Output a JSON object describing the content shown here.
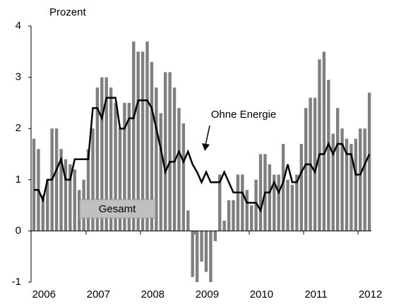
{
  "chart_data": {
    "type": "bar",
    "y_label": "Prozent",
    "categories": [
      null,
      null,
      null,
      "2006",
      null,
      null,
      null,
      null,
      null,
      null,
      null,
      null,
      null,
      null,
      null,
      "2007",
      null,
      null,
      null,
      null,
      null,
      null,
      null,
      null,
      null,
      null,
      null,
      "2008",
      null,
      null,
      null,
      null,
      null,
      null,
      null,
      null,
      null,
      null,
      null,
      "2009",
      null,
      null,
      null,
      null,
      null,
      null,
      null,
      null,
      null,
      null,
      null,
      "2010",
      null,
      null,
      null,
      null,
      null,
      null,
      null,
      null,
      null,
      null,
      null,
      "2011",
      null,
      null,
      null,
      null,
      null,
      null,
      null,
      null,
      null,
      null,
      null,
      "2012"
    ],
    "series": [
      {
        "name": "Gesamt",
        "type": "bar",
        "color": "#7f7f7f",
        "values": [
          1.8,
          1.6,
          0.7,
          1.0,
          2.0,
          2.0,
          1.6,
          1.4,
          1.3,
          1.2,
          0.8,
          1.0,
          1.6,
          2.0,
          2.8,
          3.0,
          3.0,
          2.8,
          2.5,
          2.0,
          2.5,
          2.5,
          3.7,
          3.5,
          3.5,
          3.7,
          3.3,
          2.8,
          2.3,
          3.1,
          3.1,
          2.8,
          2.4,
          2.1,
          0.4,
          -0.9,
          -1.0,
          -0.6,
          -0.8,
          -1.0,
          -0.2,
          1.1,
          0.2,
          0.6,
          0.6,
          1.1,
          1.1,
          0.8,
          0.5,
          1.0,
          1.5,
          1.5,
          1.3,
          1.1,
          1.1,
          1.7,
          1.0,
          0.9,
          1.1,
          1.7,
          2.4,
          2.6,
          2.6,
          3.35,
          3.5,
          2.95,
          1.9,
          2.4,
          2.0,
          1.8,
          1.7,
          1.8,
          2.0,
          2.0,
          2.7,
          null
        ]
      },
      {
        "name": "Ohne Energie",
        "type": "line",
        "color": "#000000",
        "values": [
          0.8,
          0.8,
          0.6,
          1.0,
          1.0,
          1.2,
          1.4,
          1.0,
          1.0,
          1.4,
          1.4,
          1.4,
          1.4,
          2.4,
          2.4,
          2.2,
          2.6,
          2.6,
          2.6,
          2.0,
          2.0,
          2.2,
          2.2,
          2.55,
          2.55,
          2.55,
          2.4,
          2.0,
          1.6,
          1.15,
          1.35,
          1.35,
          1.55,
          1.35,
          1.55,
          1.3,
          1.15,
          0.95,
          1.15,
          0.95,
          0.95,
          0.95,
          1.15,
          0.95,
          0.75,
          0.75,
          0.75,
          0.55,
          0.55,
          0.55,
          0.4,
          0.75,
          0.75,
          0.95,
          0.75,
          0.95,
          1.3,
          0.95,
          0.95,
          1.15,
          1.3,
          1.3,
          1.15,
          1.5,
          1.5,
          1.7,
          1.5,
          1.7,
          1.7,
          1.5,
          1.5,
          1.1,
          1.1,
          1.3,
          1.5,
          null
        ]
      }
    ],
    "ylim": [
      -1,
      4
    ],
    "yticks": [
      -1,
      0,
      1,
      2,
      3,
      4
    ]
  }
}
